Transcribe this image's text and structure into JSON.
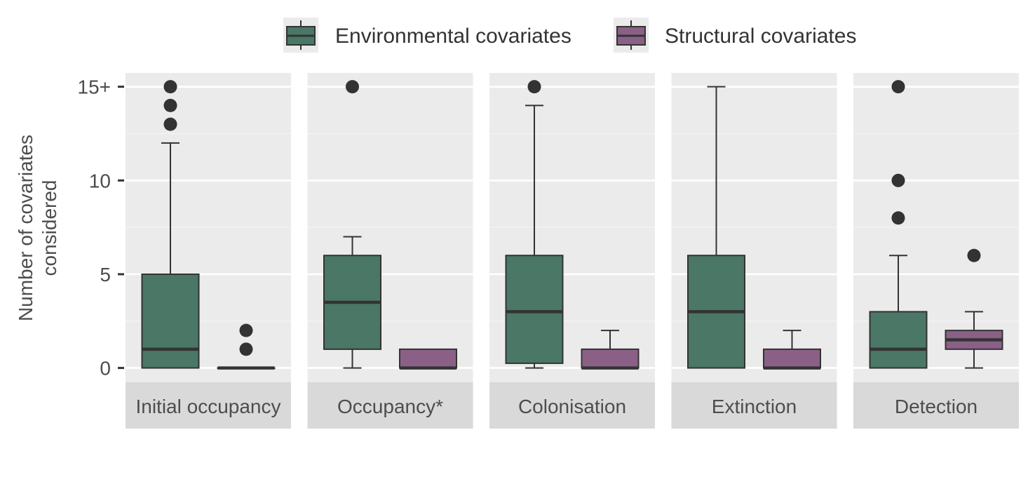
{
  "chart_data": {
    "type": "boxplot",
    "legend": {
      "position": "top",
      "entries": [
        {
          "label": "Environmental covariates",
          "color": "#4a7766"
        },
        {
          "label": "Structural covariates",
          "color": "#8b6087"
        }
      ]
    },
    "ylabel_lines": [
      "Number of covariates",
      "considered"
    ],
    "ylim": [
      -0.75,
      15.75
    ],
    "y_ticks": [
      {
        "value": 0,
        "label": "0"
      },
      {
        "value": 5,
        "label": "5"
      },
      {
        "value": 10,
        "label": "10"
      },
      {
        "value": 15,
        "label": "15+"
      }
    ],
    "grid": true,
    "facets": [
      {
        "name": "Initial occupancy",
        "boxes": [
          {
            "series": "Environmental covariates",
            "min": 0,
            "q1": 0,
            "median": 1,
            "q3": 5,
            "max": 12,
            "outliers": [
              13,
              14,
              15
            ]
          },
          {
            "series": "Structural covariates",
            "min": 0,
            "q1": 0,
            "median": 0,
            "q3": 0,
            "max": 0,
            "outliers": [
              1,
              2
            ]
          }
        ]
      },
      {
        "name": "Occupancy*",
        "boxes": [
          {
            "series": "Environmental covariates",
            "min": 0,
            "q1": 1,
            "median": 3.5,
            "q3": 6,
            "max": 7,
            "outliers": [
              15
            ]
          },
          {
            "series": "Structural covariates",
            "min": 0,
            "q1": 0,
            "median": 0,
            "q3": 1,
            "max": 1,
            "outliers": []
          }
        ]
      },
      {
        "name": "Colonisation",
        "boxes": [
          {
            "series": "Environmental covariates",
            "min": 0,
            "q1": 0.25,
            "median": 3,
            "q3": 6,
            "max": 14,
            "outliers": [
              15
            ]
          },
          {
            "series": "Structural covariates",
            "min": 0,
            "q1": 0,
            "median": 0,
            "q3": 1,
            "max": 2,
            "outliers": []
          }
        ]
      },
      {
        "name": "Extinction",
        "boxes": [
          {
            "series": "Environmental covariates",
            "min": 0,
            "q1": 0,
            "median": 3,
            "q3": 6,
            "max": 15,
            "outliers": []
          },
          {
            "series": "Structural covariates",
            "min": 0,
            "q1": 0,
            "median": 0,
            "q3": 1,
            "max": 2,
            "outliers": []
          }
        ]
      },
      {
        "name": "Detection",
        "boxes": [
          {
            "series": "Environmental covariates",
            "min": 0,
            "q1": 0,
            "median": 1,
            "q3": 3,
            "max": 6,
            "outliers": [
              8,
              10,
              15
            ]
          },
          {
            "series": "Structural covariates",
            "min": 0,
            "q1": 1,
            "median": 1.5,
            "q3": 2,
            "max": 3,
            "outliers": [
              6
            ]
          }
        ]
      }
    ]
  }
}
